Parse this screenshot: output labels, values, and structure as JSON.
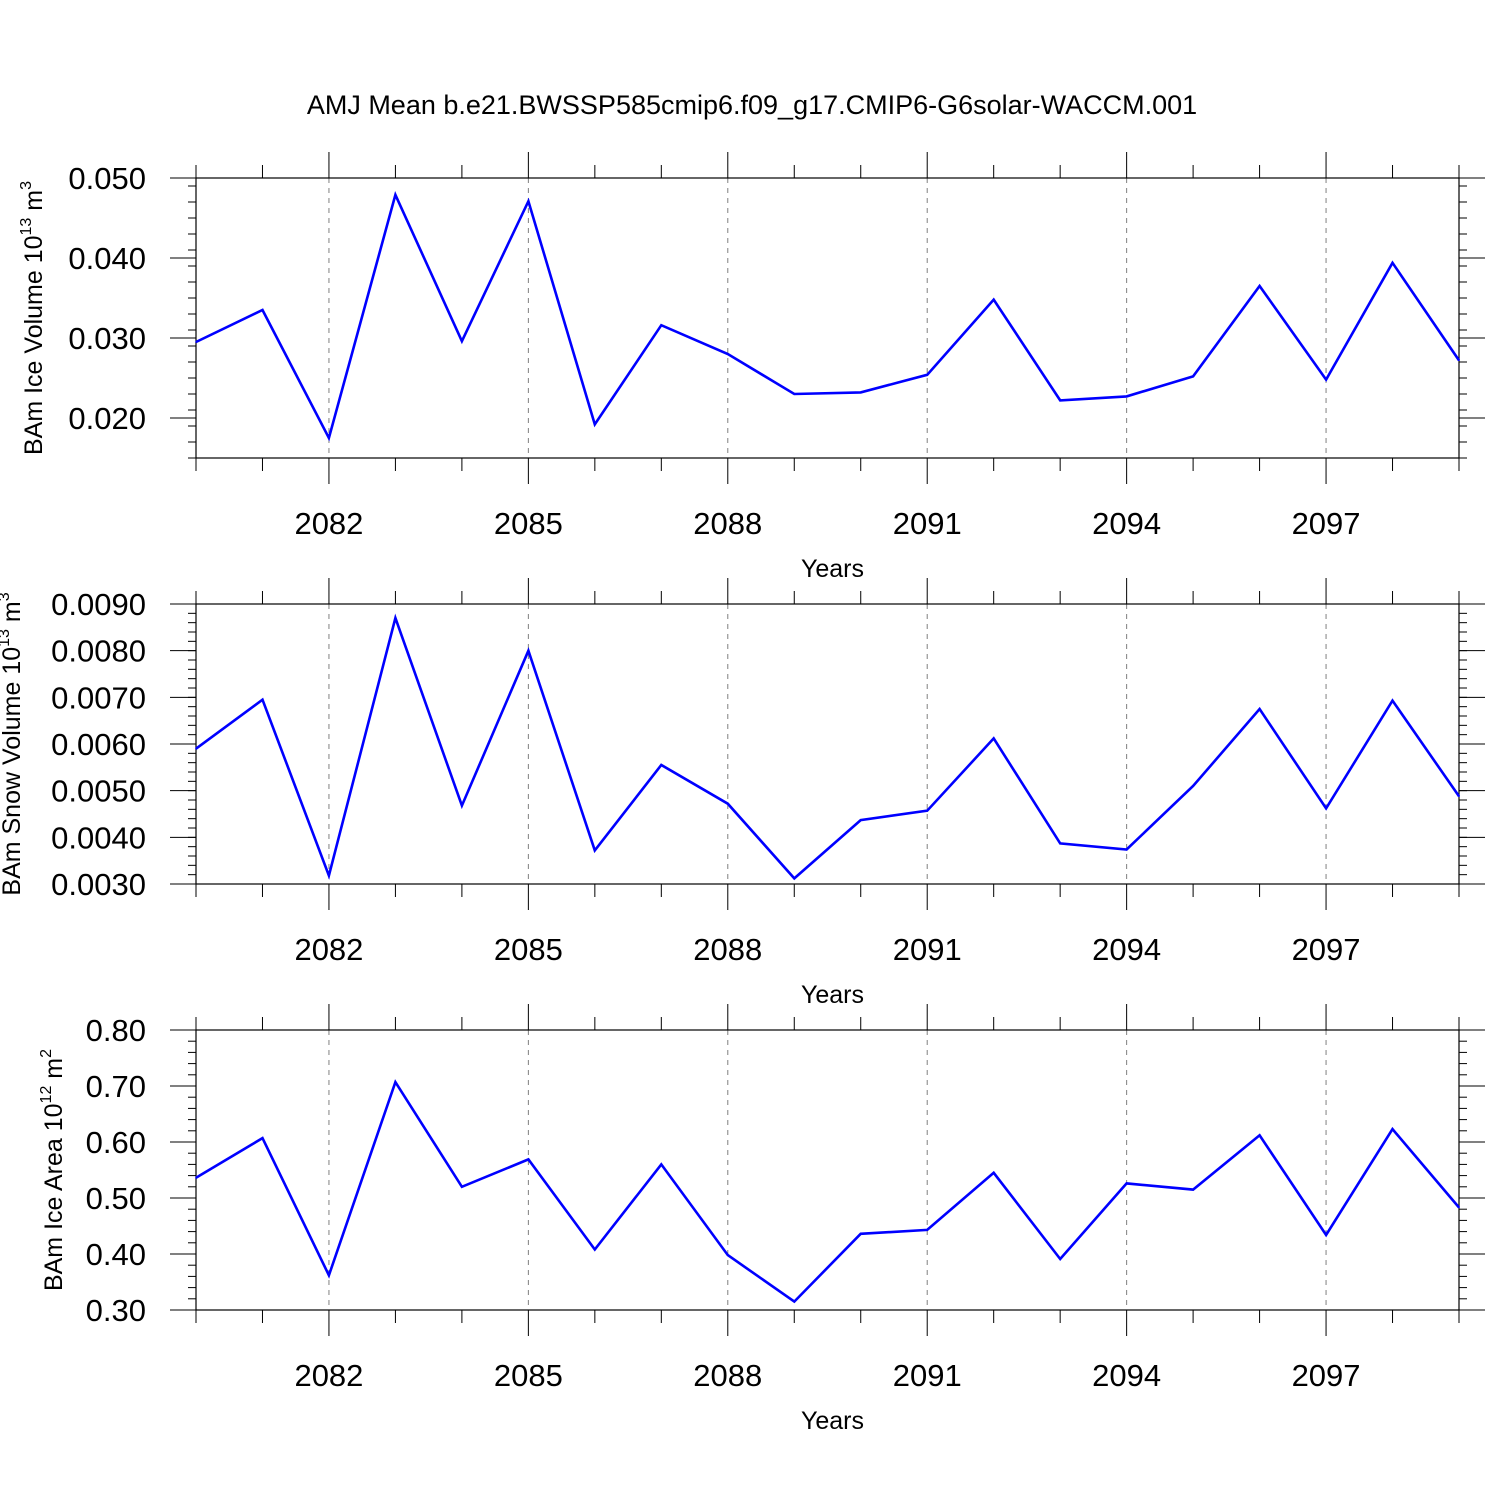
{
  "title": "AMJ Mean b.e21.BWSSP585cmip6.f09_g17.CMIP6-G6solar-WACCM.001",
  "colors": {
    "line": "#0000ff",
    "axis": "#000000",
    "grid": "#808080"
  },
  "chart_data": [
    {
      "type": "line",
      "xlabel": "Years",
      "ylabel": {
        "text": "BAm Ice Volume 10",
        "sup": "13",
        "unit": " m",
        "unit_sup": "3"
      },
      "x": [
        2080,
        2081,
        2082,
        2083,
        2084,
        2085,
        2086,
        2087,
        2088,
        2089,
        2090,
        2091,
        2092,
        2093,
        2094,
        2095,
        2096,
        2097,
        2098,
        2099
      ],
      "xlim": [
        2080,
        2099
      ],
      "xticks": [
        2082,
        2085,
        2088,
        2091,
        2094,
        2097
      ],
      "xtick_labels": [
        "2082",
        "2085",
        "2088",
        "2091",
        "2094",
        "2097"
      ],
      "ylim": [
        0.015,
        0.05
      ],
      "yticks": [
        0.02,
        0.03,
        0.04,
        0.05
      ],
      "ytick_labels": [
        "0.020",
        "0.030",
        "0.040",
        "0.050"
      ],
      "series": [
        {
          "values": [
            0.0295,
            0.0335,
            0.0175,
            0.0479,
            0.0296,
            0.0471,
            0.0192,
            0.0316,
            0.028,
            0.023,
            0.0232,
            0.0254,
            0.0348,
            0.0222,
            0.0227,
            0.0252,
            0.0365,
            0.0248,
            0.0394,
            0.0272
          ]
        }
      ]
    },
    {
      "type": "line",
      "xlabel": "Years",
      "ylabel": {
        "text": "BAm Snow Volume 10",
        "sup": "13",
        "unit": " m",
        "unit_sup": "3"
      },
      "x": [
        2080,
        2081,
        2082,
        2083,
        2084,
        2085,
        2086,
        2087,
        2088,
        2089,
        2090,
        2091,
        2092,
        2093,
        2094,
        2095,
        2096,
        2097,
        2098,
        2099
      ],
      "xlim": [
        2080,
        2099
      ],
      "xticks": [
        2082,
        2085,
        2088,
        2091,
        2094,
        2097
      ],
      "xtick_labels": [
        "2082",
        "2085",
        "2088",
        "2091",
        "2094",
        "2097"
      ],
      "ylim": [
        0.003,
        0.009
      ],
      "yticks": [
        0.003,
        0.004,
        0.005,
        0.006,
        0.007,
        0.008,
        0.009
      ],
      "ytick_labels": [
        "0.0030",
        "0.0040",
        "0.0050",
        "0.0060",
        "0.0070",
        "0.0080",
        "0.0090"
      ],
      "series": [
        {
          "values": [
            0.0059,
            0.00695,
            0.00318,
            0.0087,
            0.00468,
            0.008,
            0.00372,
            0.00555,
            0.00472,
            0.00312,
            0.00437,
            0.00457,
            0.00612,
            0.00387,
            0.00374,
            0.0051,
            0.00675,
            0.00462,
            0.00693,
            0.00488
          ]
        }
      ]
    },
    {
      "type": "line",
      "xlabel": "Years",
      "ylabel": {
        "text": "BAm Ice Area 10",
        "sup": "12",
        "unit": " m",
        "unit_sup": "2"
      },
      "x": [
        2080,
        2081,
        2082,
        2083,
        2084,
        2085,
        2086,
        2087,
        2088,
        2089,
        2090,
        2091,
        2092,
        2093,
        2094,
        2095,
        2096,
        2097,
        2098,
        2099
      ],
      "xlim": [
        2080,
        2099
      ],
      "xticks": [
        2082,
        2085,
        2088,
        2091,
        2094,
        2097
      ],
      "xtick_labels": [
        "2082",
        "2085",
        "2088",
        "2091",
        "2094",
        "2097"
      ],
      "ylim": [
        0.3,
        0.8
      ],
      "yticks": [
        0.3,
        0.4,
        0.5,
        0.6,
        0.7,
        0.8
      ],
      "ytick_labels": [
        "0.30",
        "0.40",
        "0.50",
        "0.60",
        "0.70",
        "0.80"
      ],
      "series": [
        {
          "values": [
            0.536,
            0.607,
            0.362,
            0.707,
            0.52,
            0.569,
            0.408,
            0.56,
            0.398,
            0.315,
            0.436,
            0.443,
            0.545,
            0.391,
            0.526,
            0.515,
            0.612,
            0.434,
            0.623,
            0.483
          ]
        }
      ]
    }
  ]
}
